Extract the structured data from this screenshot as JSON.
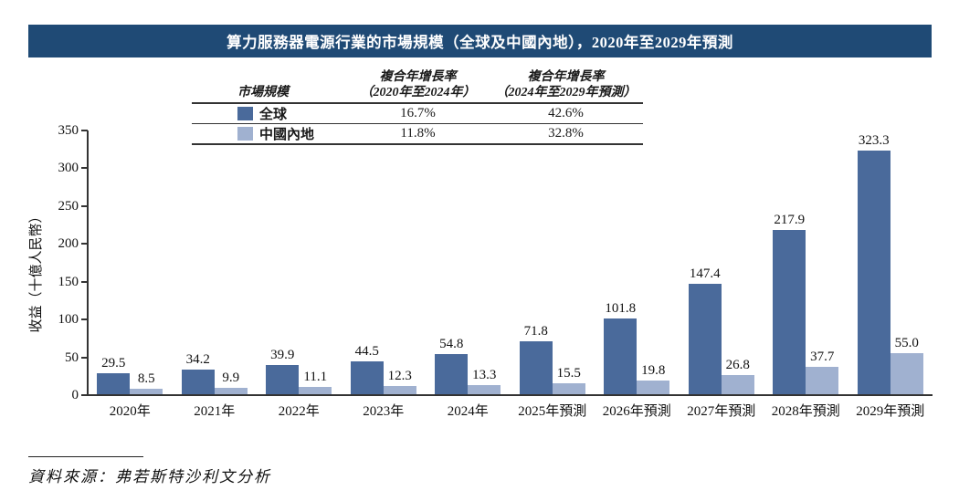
{
  "title": "算力服務器電源行業的市場規模（全球及中國內地），2020年至2029年預測",
  "legend_table": {
    "col1_header": "市場規模",
    "col2_header_line1": "複合年增長率",
    "col2_header_line2": "（2020年至2024年）",
    "col3_header_line1": "複合年增長率",
    "col3_header_line2": "（2024年至2029年預測）",
    "rows": [
      {
        "label": "全球",
        "cagr_2020_2024": "16.7%",
        "cagr_2024_2029": "42.6%",
        "color": "#4a6a9b"
      },
      {
        "label": "中國內地",
        "cagr_2020_2024": "11.8%",
        "cagr_2024_2029": "32.8%",
        "color": "#a0b1d0"
      }
    ]
  },
  "chart_data": {
    "type": "bar",
    "categories": [
      "2020年",
      "2021年",
      "2022年",
      "2023年",
      "2024年",
      "2025年預測",
      "2026年預測",
      "2027年預測",
      "2028年預測",
      "2029年預測"
    ],
    "series": [
      {
        "name": "全球",
        "color": "#4a6a9b",
        "values": [
          29.5,
          34.2,
          39.9,
          44.5,
          54.8,
          71.8,
          101.8,
          147.4,
          217.9,
          323.3
        ]
      },
      {
        "name": "中國內地",
        "color": "#a0b1d0",
        "values": [
          8.5,
          9.9,
          11.1,
          12.3,
          13.3,
          15.5,
          19.8,
          26.8,
          37.7,
          55.0
        ]
      }
    ],
    "title": "算力服務器電源行業的市場規模（全球及中國內地），2020年至2029年預測",
    "xlabel": "",
    "ylabel": "收益（十億人民幣）",
    "ylim": [
      0,
      350
    ],
    "yticks": [
      0,
      50,
      100,
      150,
      200,
      250,
      300,
      350
    ],
    "grid": false,
    "value_labels": true,
    "legend_position": "top-table"
  },
  "footer": {
    "source": "資料來源：弗若斯特沙利文分析"
  },
  "colors": {
    "title_bar_bg": "#1f4a75",
    "title_text": "#ffffff",
    "global_bar": "#4a6a9b",
    "china_bar": "#a0b1d0",
    "axis": "#333333"
  }
}
